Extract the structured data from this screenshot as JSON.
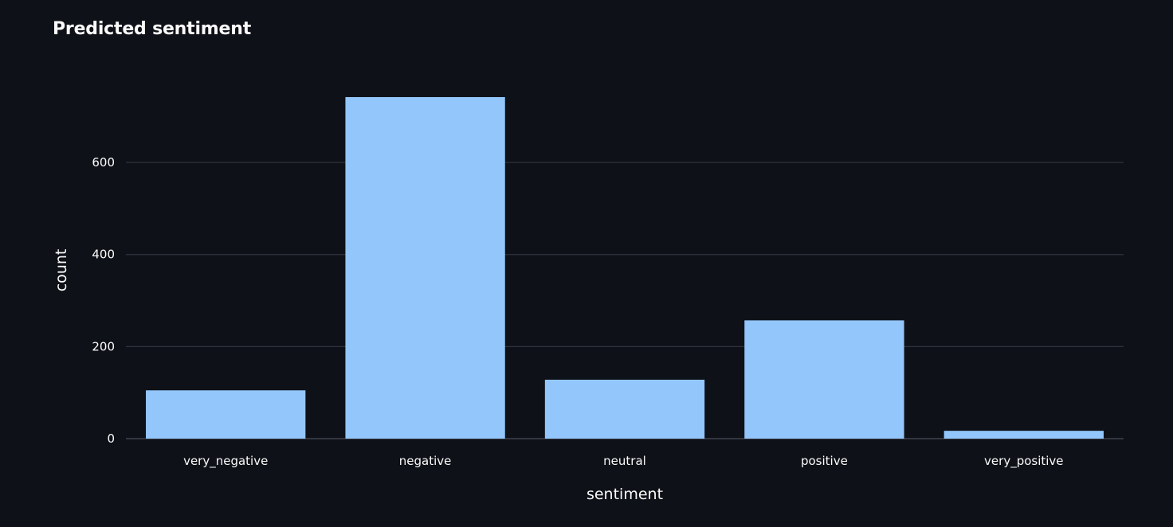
{
  "chart_data": {
    "type": "bar",
    "title": "Predicted sentiment",
    "xlabel": "sentiment",
    "ylabel": "count",
    "categories": [
      "very_negative",
      "negative",
      "neutral",
      "positive",
      "very_positive"
    ],
    "values": [
      105,
      742,
      128,
      257,
      17
    ],
    "ylim": [
      0,
      780
    ],
    "yticks": [
      0,
      200,
      400,
      600
    ],
    "grid": true,
    "colors": {
      "bar": "#93c6fa",
      "grid": "#31333f",
      "background": "#0e1117",
      "text": "#fafafa"
    }
  }
}
